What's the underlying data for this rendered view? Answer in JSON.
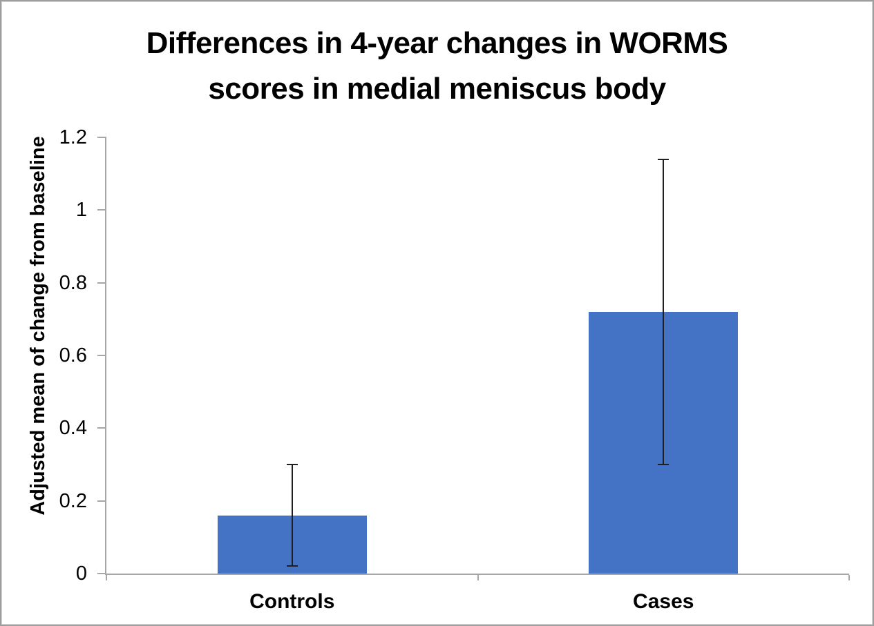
{
  "figure": {
    "title_lines": [
      "Differences in 4-year changes in WORMS",
      "scores in medial meniscus body"
    ]
  },
  "chart_data": {
    "type": "bar",
    "title": "Differences in 4-year changes in WORMS scores in medial meniscus body",
    "categories": [
      "Controls",
      "Cases"
    ],
    "values": [
      0.16,
      0.72
    ],
    "error_bars": {
      "lower": [
        0.02,
        0.3
      ],
      "upper": [
        0.3,
        1.14
      ]
    },
    "xlabel": "",
    "ylabel": "Adjusted mean of change from baseline",
    "ylim": [
      0,
      1.2
    ],
    "yticks": [
      "0",
      "0.2",
      "0.4",
      "0.6",
      "0.8",
      "1",
      "1.2"
    ],
    "grid": false,
    "legend": false,
    "bar_color": "#4472C4",
    "error_color": "#1f1f1f",
    "axis_color": "#a6a6a6",
    "text_color": "#000000"
  }
}
